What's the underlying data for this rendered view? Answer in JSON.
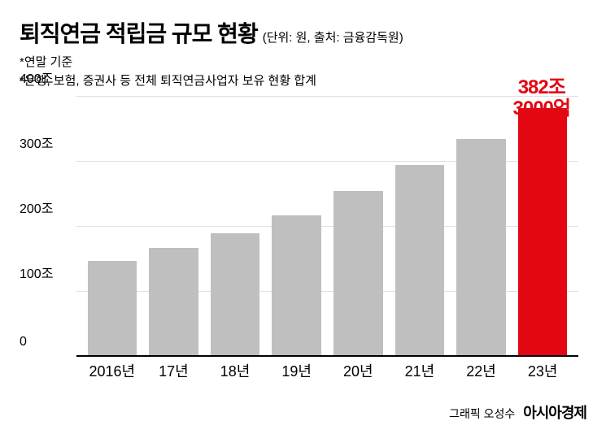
{
  "header": {
    "title": "퇴직연금 적립금 규모 현황",
    "subtitle": "(단위: 원, 출처: 금융감독원)",
    "note1": "*연말 기준",
    "note2": "*은행, 보험, 증권사 등 전체 퇴직연금사업자 보유 현황 합계"
  },
  "chart": {
    "type": "bar",
    "ylim_max": 400,
    "yticks": [
      0,
      100,
      200,
      300,
      400
    ],
    "ytick_labels": [
      "0",
      "100조",
      "200조",
      "300조",
      "400조"
    ],
    "categories": [
      "2016년",
      "17년",
      "18년",
      "19년",
      "20년",
      "21년",
      "22년",
      "23년"
    ],
    "values": [
      147,
      168,
      190,
      218,
      255,
      295,
      335,
      382.3
    ],
    "bar_colors": [
      "#bfbfbf",
      "#bfbfbf",
      "#bfbfbf",
      "#bfbfbf",
      "#bfbfbf",
      "#bfbfbf",
      "#bfbfbf",
      "#e30613"
    ],
    "grid_color": "#e0e0e0",
    "axis_color": "#000000",
    "highlight_line1": "382조",
    "highlight_line2": "3000억",
    "highlight_color": "#e30613"
  },
  "footer": {
    "credit": "그래픽 오성수",
    "brand": "아시아경제"
  }
}
